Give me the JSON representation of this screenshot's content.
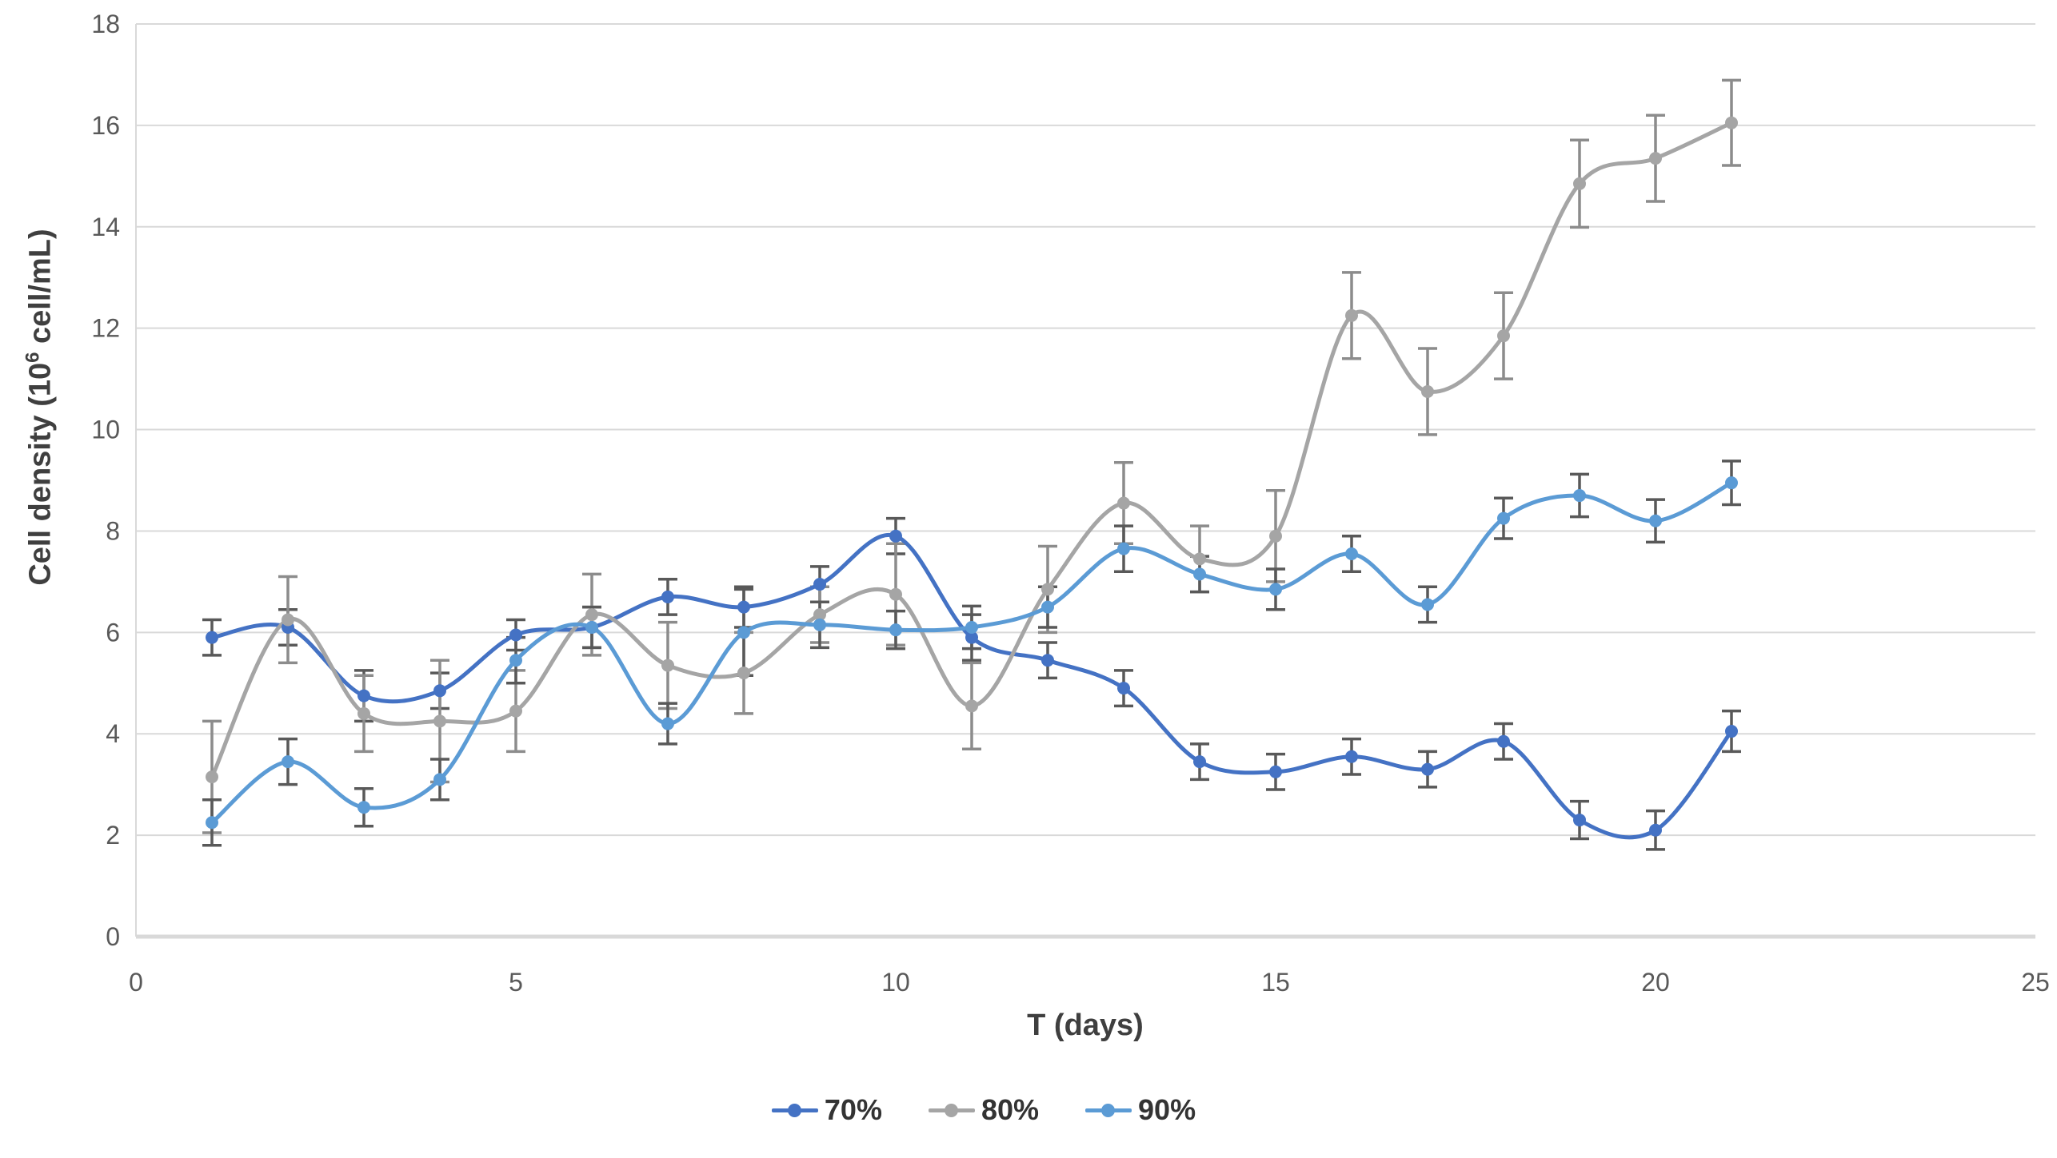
{
  "chart_data": {
    "type": "line",
    "title": "",
    "xlabel": "T (days)",
    "ylabel": "Cell density (10⁶ cell/mL)",
    "ylabel_parts": {
      "base": "Cell density (10",
      "sup": "6",
      "rest": " cell/mL)"
    },
    "xlim": [
      0,
      25
    ],
    "ylim": [
      0,
      18
    ],
    "xticks": [
      0,
      5,
      10,
      15,
      20,
      25
    ],
    "yticks": [
      0,
      2,
      4,
      6,
      8,
      10,
      12,
      14,
      16,
      18
    ],
    "grid": "horizontal",
    "smooth_lines": true,
    "error_bars": true,
    "legend_position": "bottom",
    "x": [
      1,
      2,
      3,
      4,
      5,
      6,
      7,
      8,
      9,
      10,
      11,
      12,
      13,
      14,
      15,
      16,
      17,
      18,
      19,
      20,
      21
    ],
    "series": [
      {
        "name": "70%",
        "color": "#4472C4",
        "error_color": "#595959",
        "values": [
          5.9,
          6.1,
          4.75,
          4.85,
          5.95,
          6.1,
          6.7,
          6.5,
          6.95,
          7.9,
          5.9,
          5.45,
          4.9,
          3.45,
          3.25,
          3.55,
          3.3,
          3.85,
          2.3,
          2.1,
          4.05
        ],
        "errors": [
          0.35,
          0.35,
          0.5,
          0.35,
          0.3,
          0.4,
          0.35,
          0.4,
          0.35,
          0.35,
          0.45,
          0.35,
          0.35,
          0.35,
          0.35,
          0.35,
          0.35,
          0.35,
          0.37,
          0.38,
          0.4
        ]
      },
      {
        "name": "80%",
        "color": "#A5A5A5",
        "error_color": "#8C8C8C",
        "values": [
          3.15,
          6.25,
          4.4,
          4.25,
          4.45,
          6.35,
          5.35,
          5.2,
          6.35,
          6.75,
          4.55,
          6.85,
          8.55,
          7.45,
          7.9,
          12.25,
          10.75,
          11.85,
          14.85,
          15.35,
          16.05
        ],
        "errors": [
          1.1,
          0.85,
          0.75,
          1.2,
          0.8,
          0.8,
          0.85,
          0.8,
          0.55,
          1.0,
          0.85,
          0.85,
          0.8,
          0.65,
          0.9,
          0.85,
          0.85,
          0.85,
          0.86,
          0.85,
          0.84
        ]
      },
      {
        "name": "90%",
        "color": "#5B9BD5",
        "error_color": "#595959",
        "values": [
          2.25,
          3.45,
          2.55,
          3.1,
          5.45,
          6.1,
          4.2,
          6.0,
          6.15,
          6.05,
          6.1,
          6.5,
          7.65,
          7.15,
          6.85,
          7.55,
          6.55,
          8.25,
          8.7,
          8.2,
          8.95
        ],
        "errors": [
          0.45,
          0.45,
          0.37,
          0.4,
          0.45,
          0.4,
          0.4,
          0.85,
          0.45,
          0.37,
          0.42,
          0.4,
          0.45,
          0.35,
          0.4,
          0.35,
          0.35,
          0.4,
          0.42,
          0.42,
          0.43
        ]
      }
    ],
    "colors": {
      "background": "#FFFFFF",
      "gridline": "#D9D9D9",
      "axis_line": "#D9D9D9",
      "tick_label": "#595959",
      "axis_title": "#3F3F3F",
      "legend_text": "#333333"
    }
  }
}
